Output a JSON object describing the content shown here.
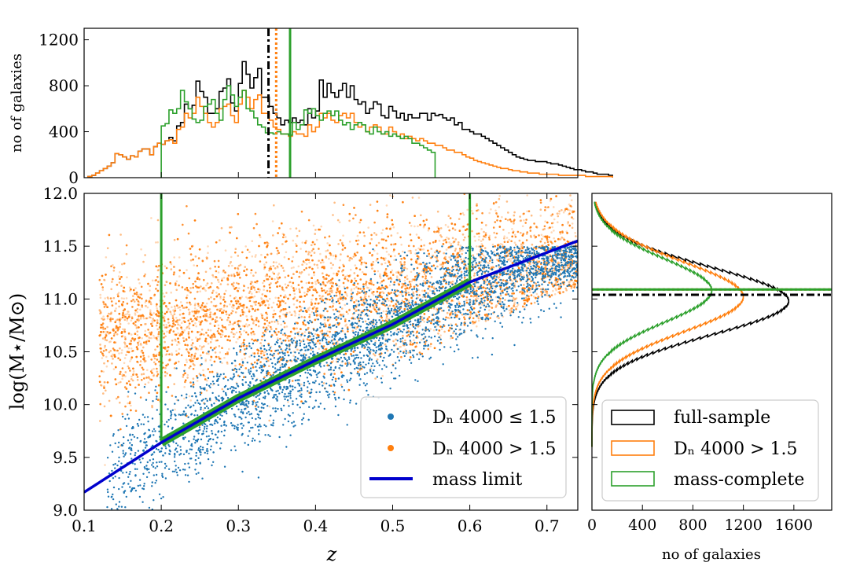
{
  "chart_data": [
    {
      "panel": "top",
      "type": "histogram",
      "xlim": [
        0.1,
        0.74
      ],
      "ylim": [
        0,
        1300
      ],
      "ylabel": "no of galaxies",
      "yticks": [
        "0",
        "400",
        "800",
        "1200"
      ],
      "bin_width": 0.005,
      "bin_start": 0.105,
      "series": [
        {
          "name": "full-sample",
          "color": "#000000",
          "values": [
            10,
            20,
            40,
            60,
            80,
            100,
            130,
            210,
            200,
            180,
            160,
            190,
            180,
            230,
            250,
            250,
            200,
            270,
            300,
            290,
            320,
            350,
            320,
            450,
            480,
            640,
            600,
            630,
            840,
            750,
            700,
            560,
            560,
            600,
            750,
            780,
            860,
            650,
            580,
            820,
            1010,
            900,
            780,
            870,
            950,
            700,
            700,
            620,
            560,
            520,
            460,
            500,
            480,
            520,
            480,
            500,
            460,
            600,
            520,
            580,
            850,
            700,
            820,
            740,
            700,
            760,
            820,
            700,
            800,
            680,
            640,
            660,
            560,
            600,
            660,
            640,
            540,
            520,
            620,
            580,
            520,
            560,
            500,
            550,
            520,
            520,
            560,
            560,
            500,
            560,
            540,
            550,
            520,
            500,
            520,
            460,
            480,
            420,
            420,
            400,
            380,
            380,
            360,
            340,
            320,
            300,
            280,
            260,
            240,
            220,
            200,
            180,
            170,
            160,
            150,
            150,
            140,
            140,
            140,
            130,
            120,
            120,
            110,
            100,
            90,
            80,
            70,
            70,
            60,
            50,
            50,
            40,
            30,
            30,
            30,
            20
          ]
        },
        {
          "name": "D_n4000 > 1.5",
          "color": "#ff7f0e",
          "values": [
            10,
            20,
            40,
            60,
            80,
            100,
            130,
            210,
            200,
            180,
            160,
            190,
            180,
            230,
            250,
            250,
            200,
            270,
            300,
            290,
            320,
            330,
            300,
            420,
            440,
            560,
            520,
            560,
            700,
            620,
            560,
            480,
            440,
            480,
            600,
            620,
            640,
            540,
            480,
            640,
            760,
            700,
            600,
            680,
            720,
            560,
            560,
            500,
            440,
            420,
            380,
            380,
            360,
            400,
            380,
            380,
            360,
            460,
            400,
            440,
            560,
            520,
            560,
            500,
            480,
            540,
            560,
            520,
            560,
            480,
            440,
            460,
            400,
            440,
            460,
            440,
            380,
            380,
            440,
            400,
            360,
            380,
            340,
            360,
            340,
            320,
            340,
            320,
            300,
            300,
            280,
            280,
            260,
            240,
            240,
            220,
            220,
            200,
            180,
            170,
            150,
            140,
            130,
            120,
            110,
            100,
            90,
            80,
            80,
            70,
            60,
            60,
            50,
            50,
            40,
            40,
            40,
            30,
            30,
            30,
            30,
            30,
            20,
            20,
            20,
            20,
            20,
            20,
            20,
            10,
            10,
            10,
            10,
            10,
            10,
            10
          ]
        },
        {
          "name": "mass-complete",
          "color": "#2ca02c",
          "values": [
            0,
            0,
            0,
            0,
            0,
            0,
            0,
            0,
            0,
            0,
            0,
            0,
            0,
            0,
            0,
            0,
            0,
            0,
            0,
            450,
            470,
            590,
            560,
            600,
            760,
            660,
            600,
            510,
            480,
            500,
            620,
            640,
            680,
            560,
            500,
            680,
            800,
            720,
            620,
            700,
            760,
            600,
            580,
            520,
            460,
            440,
            390,
            390,
            380,
            400,
            380,
            380,
            370,
            480,
            420,
            460,
            590,
            560,
            600,
            540,
            500,
            560,
            580,
            540,
            580,
            500,
            460,
            480,
            420,
            460,
            480,
            460,
            400,
            380,
            440,
            400,
            380,
            400,
            360,
            380,
            360,
            340,
            360,
            340,
            300,
            300,
            280,
            260,
            240,
            220,
            0,
            0,
            0,
            0,
            0,
            0,
            0,
            0,
            0,
            0,
            0,
            0,
            0,
            0,
            0,
            0,
            0,
            0,
            0,
            0,
            0,
            0,
            0,
            0,
            0,
            0,
            0,
            0,
            0,
            0,
            0,
            0,
            0,
            0,
            0,
            0,
            0,
            0,
            0
          ]
        }
      ],
      "vlines": [
        {
          "x": 0.339,
          "color": "#000000",
          "style": "dashdot"
        },
        {
          "x": 0.349,
          "color": "#ff7f0e",
          "style": "dotted"
        },
        {
          "x": 0.367,
          "color": "#2ca02c",
          "style": "solid"
        }
      ]
    },
    {
      "panel": "main",
      "type": "scatter",
      "xlabel": "z",
      "ylabel": "log(M⋆/M⊙)",
      "xlim": [
        0.1,
        0.74
      ],
      "ylim": [
        9.0,
        12.0
      ],
      "xticks": [
        "0.1",
        "0.2",
        "0.3",
        "0.4",
        "0.5",
        "0.6",
        "0.7"
      ],
      "yticks": [
        "9.0",
        "9.5",
        "10.0",
        "10.5",
        "11.0",
        "11.5",
        "12.0"
      ],
      "series": [
        {
          "name": "D_n4000 ≤ 1.5",
          "color": "#1f77b4",
          "approx_points": 3500,
          "z_center": 0.45,
          "mass_center": 10.55
        },
        {
          "name": "D_n4000 > 1.5",
          "color": "#ff7f0e",
          "approx_points": 6000,
          "z_center": 0.38,
          "mass_center": 10.95
        }
      ],
      "mass_limit": {
        "name": "mass limit",
        "color": "#0000cd",
        "z": [
          0.1,
          0.2,
          0.3,
          0.4,
          0.5,
          0.6,
          0.7,
          0.74
        ],
        "logM": [
          9.17,
          9.64,
          10.06,
          10.42,
          10.76,
          11.16,
          11.44,
          11.55
        ]
      },
      "mass_complete_region": {
        "color": "#2ca02c",
        "z_min": 0.2,
        "z_max": 0.6
      }
    },
    {
      "panel": "right",
      "type": "histogram",
      "orientation": "horizontal",
      "xlabel": "no of galaxies",
      "xlim": [
        0,
        1900
      ],
      "xticks": [
        "0",
        "400",
        "800",
        "1200",
        "1600"
      ],
      "ylim": [
        9.0,
        12.0
      ],
      "series": [
        {
          "name": "full-sample",
          "color": "#000000",
          "peak": 1560,
          "peak_mass": 10.98,
          "sigma": 0.32
        },
        {
          "name": "D_n4000 > 1.5",
          "color": "#ff7f0e",
          "peak": 1200,
          "peak_mass": 11.02,
          "sigma": 0.33
        },
        {
          "name": "mass-complete",
          "color": "#2ca02c",
          "peak": 950,
          "peak_mass": 11.08,
          "sigma": 0.3
        }
      ],
      "hlines": [
        {
          "y": 11.04,
          "color": "#000000",
          "style": "dashdot"
        },
        {
          "y": 11.09,
          "color": "#ff7f0e",
          "style": "dotted"
        },
        {
          "y": 11.09,
          "color": "#2ca02c",
          "style": "solid"
        }
      ]
    }
  ],
  "legend_main": {
    "items": [
      {
        "label": "Dₙ 4000 ≤ 1.5",
        "color": "#1f77b4",
        "kind": "dot"
      },
      {
        "label": "Dₙ 4000 > 1.5",
        "color": "#ff7f0e",
        "kind": "dot"
      },
      {
        "label": "mass limit",
        "color": "#0000cd",
        "kind": "line"
      }
    ]
  },
  "legend_right": {
    "items": [
      {
        "label": "full-sample",
        "color": "#000000",
        "kind": "box"
      },
      {
        "label": "Dₙ 4000 > 1.5",
        "color": "#ff7f0e",
        "kind": "box"
      },
      {
        "label": "mass-complete",
        "color": "#2ca02c",
        "kind": "box"
      }
    ]
  }
}
